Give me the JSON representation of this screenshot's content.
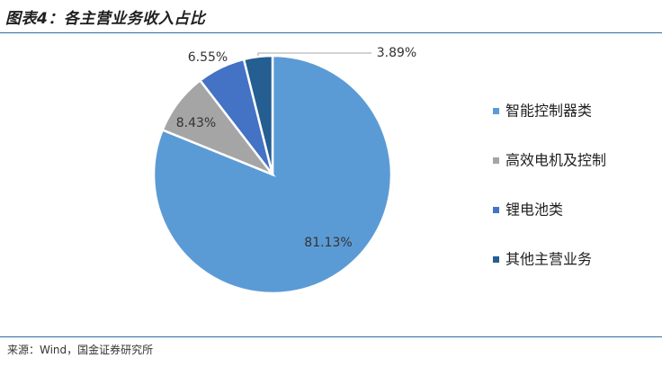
{
  "title": "图表4：各主营业务收入占比",
  "source": "来源：Wind，国金证券研究所",
  "chart_data": {
    "type": "pie",
    "categories": [
      "智能控制器类",
      "高效电机及控制",
      "锂电池类",
      "其他主营业务"
    ],
    "values": [
      81.13,
      8.43,
      6.55,
      3.89
    ],
    "labels": [
      "81.13%",
      "8.43%",
      "6.55%",
      "3.89%"
    ],
    "colors": [
      "#5b9bd5",
      "#a5a5a5",
      "#4472c4",
      "#255e91"
    ],
    "legend_position": "right"
  }
}
